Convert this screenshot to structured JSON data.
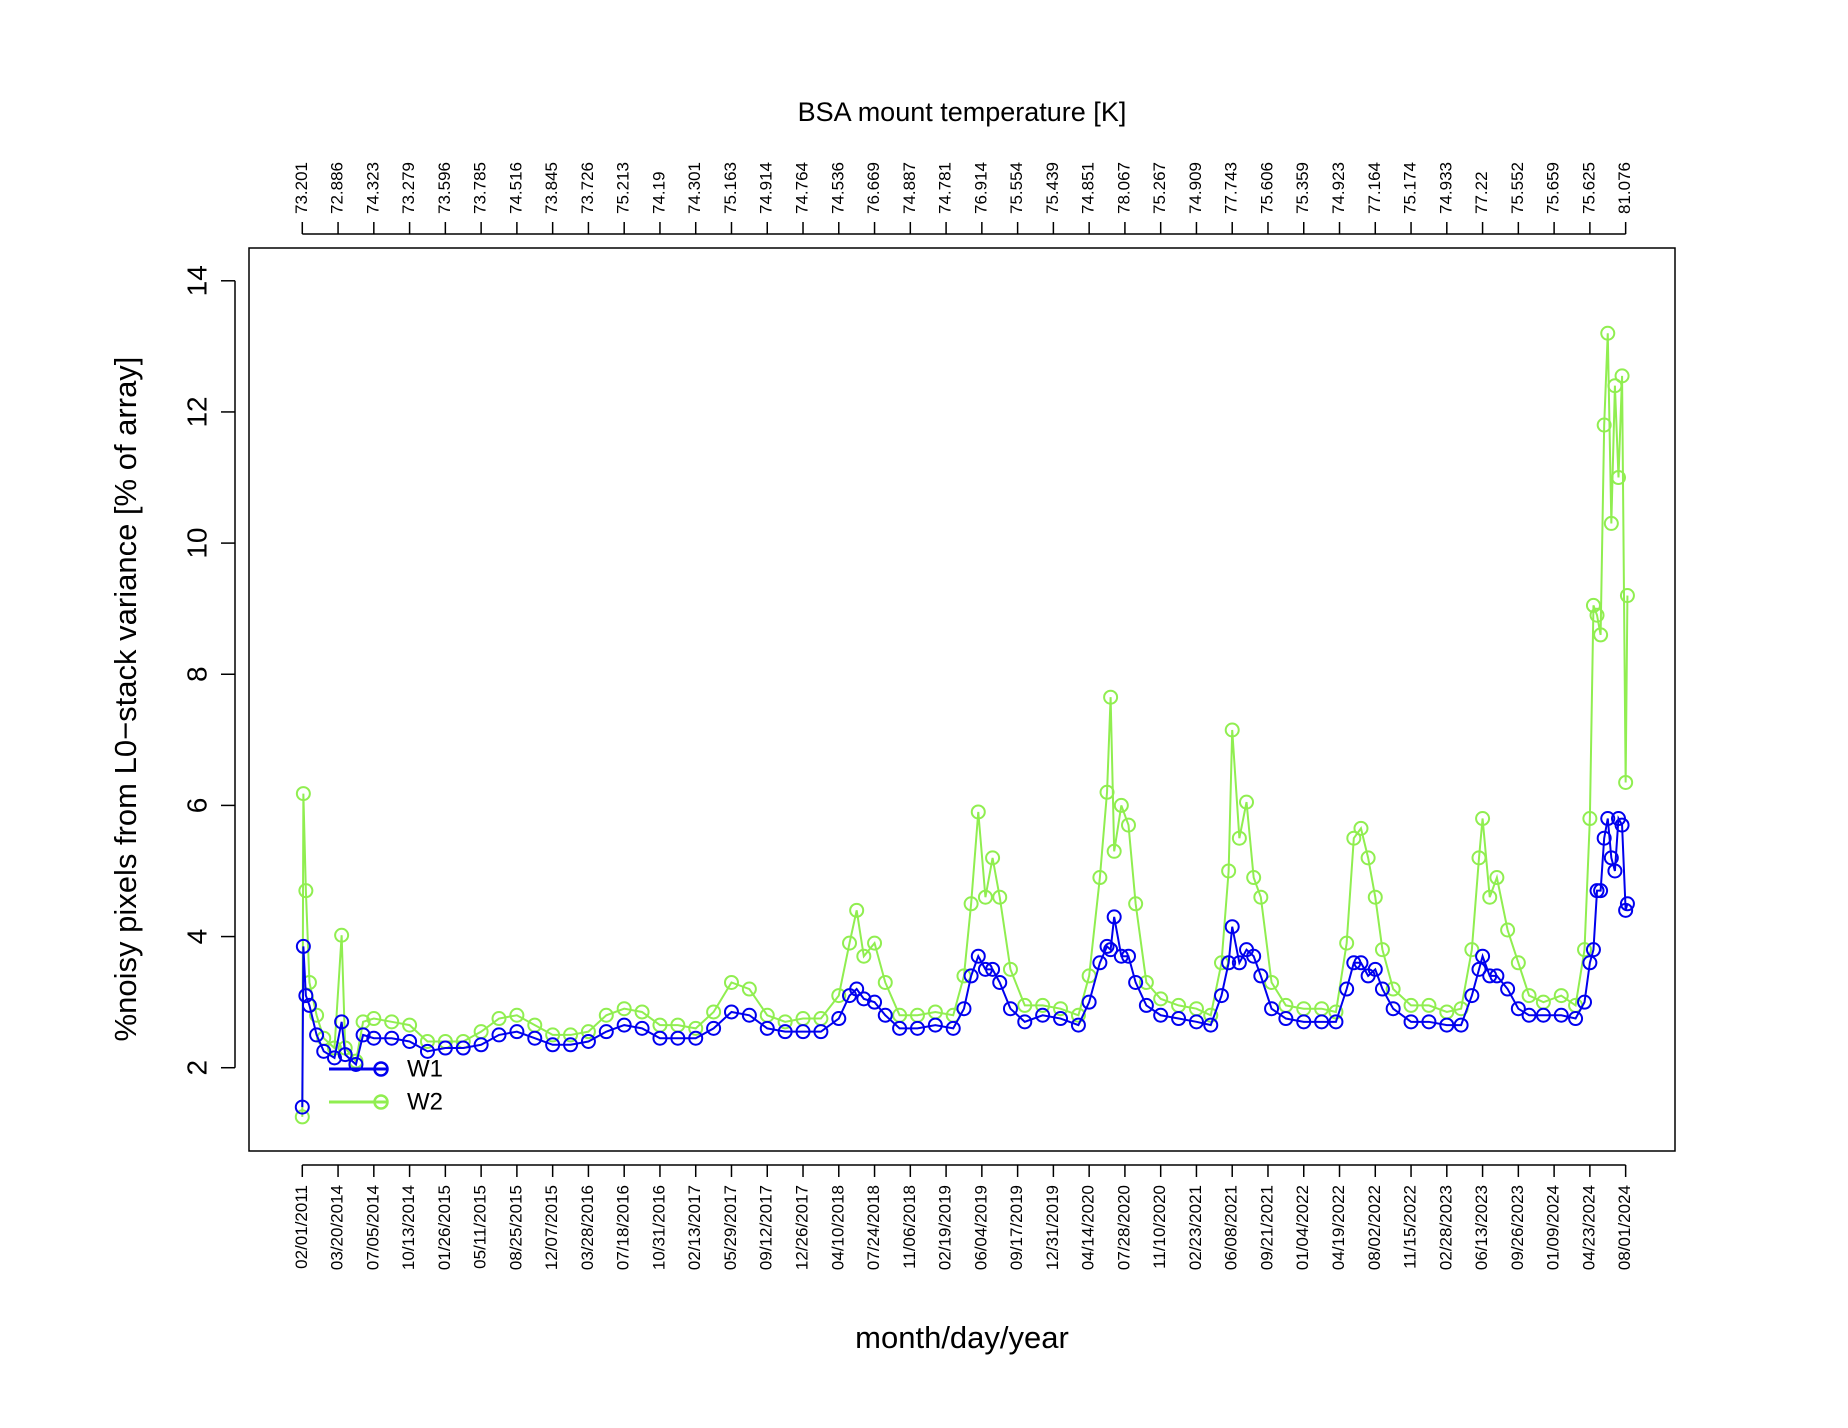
{
  "chart_data": {
    "type": "line",
    "x2label": "BSA mount temperature [K]",
    "xlabel": "month/day/year",
    "ylabel": "%noisy pixels from L0−stack variance [% of array]",
    "legend": "bottomleft",
    "markers": "open-circle",
    "x": [
      0,
      0.03,
      0.1,
      0.2,
      0.4,
      0.6,
      0.9,
      1.1,
      1.2,
      1.5,
      1.7,
      2,
      2.5,
      3,
      3.5,
      4,
      4.5,
      5,
      5.5,
      6,
      6.5,
      7,
      7.5,
      8,
      8.5,
      9,
      9.5,
      10,
      10.5,
      11,
      11.5,
      12,
      12.5,
      13,
      13.5,
      14,
      14.5,
      15,
      15.3,
      15.5,
      15.7,
      16,
      16.3,
      16.7,
      17.2,
      17.7,
      18.2,
      18.5,
      18.7,
      18.9,
      19.1,
      19.3,
      19.5,
      19.8,
      20.2,
      20.7,
      21.2,
      21.7,
      22,
      22.3,
      22.5,
      22.6,
      22.7,
      22.9,
      23.1,
      23.3,
      23.6,
      24,
      24.5,
      25,
      25.4,
      25.7,
      25.9,
      26,
      26.2,
      26.4,
      26.6,
      26.8,
      27.1,
      27.5,
      28,
      28.5,
      28.9,
      29.2,
      29.4,
      29.6,
      29.8,
      30,
      30.2,
      30.5,
      31,
      31.5,
      32,
      32.4,
      32.7,
      32.9,
      33,
      33.2,
      33.4,
      33.7,
      34,
      34.3,
      34.7,
      35.2,
      35.6,
      35.85,
      36,
      36.1,
      36.2,
      36.3,
      36.4,
      36.5,
      36.6,
      36.7,
      36.8,
      36.9,
      37,
      37.05
    ],
    "series": [
      {
        "name": "W1",
        "color": "#0000ee",
        "values": [
          1.4,
          3.85,
          3.1,
          2.95,
          2.5,
          2.25,
          2.15,
          2.7,
          2.2,
          2.05,
          2.5,
          2.45,
          2.45,
          2.4,
          2.25,
          2.3,
          2.3,
          2.35,
          2.5,
          2.55,
          2.45,
          2.35,
          2.35,
          2.4,
          2.55,
          2.65,
          2.6,
          2.45,
          2.45,
          2.45,
          2.6,
          2.85,
          2.8,
          2.6,
          2.55,
          2.55,
          2.55,
          2.75,
          3.1,
          3.2,
          3.05,
          3.0,
          2.8,
          2.6,
          2.6,
          2.65,
          2.6,
          2.9,
          3.4,
          3.7,
          3.5,
          3.5,
          3.3,
          2.9,
          2.7,
          2.8,
          2.75,
          2.65,
          3.0,
          3.6,
          3.85,
          3.8,
          4.3,
          3.7,
          3.7,
          3.3,
          2.95,
          2.8,
          2.75,
          2.7,
          2.65,
          3.1,
          3.6,
          4.15,
          3.6,
          3.8,
          3.7,
          3.4,
          2.9,
          2.75,
          2.7,
          2.7,
          2.7,
          3.2,
          3.6,
          3.6,
          3.4,
          3.5,
          3.2,
          2.9,
          2.7,
          2.7,
          2.65,
          2.65,
          3.1,
          3.5,
          3.7,
          3.4,
          3.4,
          3.2,
          2.9,
          2.8,
          2.8,
          2.8,
          2.75,
          3.0,
          3.6,
          3.8,
          4.7,
          4.7,
          5.5,
          5.8,
          5.2,
          5.0,
          5.8,
          5.7,
          4.4,
          4.5
        ]
      },
      {
        "name": "W2",
        "color": "#90ee50",
        "values": [
          1.25,
          6.18,
          4.7,
          3.3,
          2.8,
          2.45,
          2.3,
          4.02,
          2.3,
          2.1,
          2.7,
          2.75,
          2.7,
          2.65,
          2.4,
          2.4,
          2.4,
          2.55,
          2.75,
          2.8,
          2.65,
          2.5,
          2.5,
          2.55,
          2.8,
          2.9,
          2.85,
          2.65,
          2.65,
          2.6,
          2.85,
          3.3,
          3.2,
          2.8,
          2.7,
          2.75,
          2.75,
          3.1,
          3.9,
          4.4,
          3.7,
          3.9,
          3.3,
          2.8,
          2.8,
          2.85,
          2.8,
          3.4,
          4.5,
          5.9,
          4.6,
          5.2,
          4.6,
          3.5,
          2.95,
          2.95,
          2.9,
          2.8,
          3.4,
          4.9,
          6.2,
          7.65,
          5.3,
          6.0,
          5.7,
          4.5,
          3.3,
          3.05,
          2.95,
          2.9,
          2.8,
          3.6,
          5.0,
          7.15,
          5.5,
          6.05,
          4.9,
          4.6,
          3.3,
          2.95,
          2.9,
          2.9,
          2.85,
          3.9,
          5.5,
          5.65,
          5.2,
          4.6,
          3.8,
          3.2,
          2.95,
          2.95,
          2.85,
          2.9,
          3.8,
          5.2,
          5.8,
          4.6,
          4.9,
          4.1,
          3.6,
          3.1,
          3.0,
          3.1,
          2.95,
          3.8,
          5.8,
          9.05,
          8.9,
          8.6,
          11.8,
          13.2,
          10.3,
          12.4,
          11.0,
          12.55,
          6.35,
          9.2
        ]
      }
    ],
    "xlim": [
      -1.49,
      38.38
    ],
    "ylim": [
      0.73,
      14.5
    ],
    "yticks": [
      2,
      4,
      6,
      8,
      10,
      12,
      14
    ],
    "xticks": [
      {
        "value": 0,
        "label": "02/01/2011"
      },
      {
        "value": 1,
        "label": "03/20/2014"
      },
      {
        "value": 2,
        "label": "07/05/2014"
      },
      {
        "value": 3,
        "label": "10/13/2014"
      },
      {
        "value": 4,
        "label": "01/26/2015"
      },
      {
        "value": 5,
        "label": "05/11/2015"
      },
      {
        "value": 6,
        "label": "08/25/2015"
      },
      {
        "value": 7,
        "label": "12/07/2015"
      },
      {
        "value": 8,
        "label": "03/28/2016"
      },
      {
        "value": 9,
        "label": "07/18/2016"
      },
      {
        "value": 10,
        "label": "10/31/2016"
      },
      {
        "value": 11,
        "label": "02/13/2017"
      },
      {
        "value": 12,
        "label": "05/29/2017"
      },
      {
        "value": 13,
        "label": "09/12/2017"
      },
      {
        "value": 14,
        "label": "12/26/2017"
      },
      {
        "value": 15,
        "label": "04/10/2018"
      },
      {
        "value": 16,
        "label": "07/24/2018"
      },
      {
        "value": 17,
        "label": "11/06/2018"
      },
      {
        "value": 18,
        "label": "02/19/2019"
      },
      {
        "value": 19,
        "label": "06/04/2019"
      },
      {
        "value": 20,
        "label": "09/17/2019"
      },
      {
        "value": 21,
        "label": "12/31/2019"
      },
      {
        "value": 22,
        "label": "04/14/2020"
      },
      {
        "value": 23,
        "label": "07/28/2020"
      },
      {
        "value": 24,
        "label": "11/10/2020"
      },
      {
        "value": 25,
        "label": "02/23/2021"
      },
      {
        "value": 26,
        "label": "06/08/2021"
      },
      {
        "value": 27,
        "label": "09/21/2021"
      },
      {
        "value": 28,
        "label": "01/04/2022"
      },
      {
        "value": 29,
        "label": "04/19/2022"
      },
      {
        "value": 30,
        "label": "08/02/2022"
      },
      {
        "value": 31,
        "label": "11/15/2022"
      },
      {
        "value": 32,
        "label": "02/28/2023"
      },
      {
        "value": 33,
        "label": "06/13/2023"
      },
      {
        "value": 34,
        "label": "09/26/2023"
      },
      {
        "value": 35,
        "label": "01/09/2024"
      },
      {
        "value": 36,
        "label": "04/23/2024"
      },
      {
        "value": 37,
        "label": "08/01/2024"
      }
    ],
    "x2ticks": [
      {
        "value": 0,
        "label": "73.201"
      },
      {
        "value": 1,
        "label": "72.886"
      },
      {
        "value": 2,
        "label": "74.323"
      },
      {
        "value": 3,
        "label": "73.279"
      },
      {
        "value": 4,
        "label": "73.596"
      },
      {
        "value": 5,
        "label": "73.785"
      },
      {
        "value": 6,
        "label": "74.516"
      },
      {
        "value": 7,
        "label": "73.845"
      },
      {
        "value": 8,
        "label": "73.726"
      },
      {
        "value": 9,
        "label": "75.213"
      },
      {
        "value": 10,
        "label": "74.19"
      },
      {
        "value": 11,
        "label": "74.301"
      },
      {
        "value": 12,
        "label": "75.163"
      },
      {
        "value": 13,
        "label": "74.914"
      },
      {
        "value": 14,
        "label": "74.764"
      },
      {
        "value": 15,
        "label": "74.536"
      },
      {
        "value": 16,
        "label": "76.669"
      },
      {
        "value": 17,
        "label": "74.887"
      },
      {
        "value": 18,
        "label": "74.781"
      },
      {
        "value": 19,
        "label": "76.914"
      },
      {
        "value": 20,
        "label": "75.554"
      },
      {
        "value": 21,
        "label": "75.439"
      },
      {
        "value": 22,
        "label": "74.851"
      },
      {
        "value": 23,
        "label": "78.067"
      },
      {
        "value": 24,
        "label": "75.267"
      },
      {
        "value": 25,
        "label": "74.909"
      },
      {
        "value": 26,
        "label": "77.743"
      },
      {
        "value": 27,
        "label": "75.606"
      },
      {
        "value": 28,
        "label": "75.359"
      },
      {
        "value": 29,
        "label": "74.923"
      },
      {
        "value": 30,
        "label": "77.164"
      },
      {
        "value": 31,
        "label": "75.174"
      },
      {
        "value": 32,
        "label": "74.933"
      },
      {
        "value": 33,
        "label": "77.22"
      },
      {
        "value": 34,
        "label": "75.552"
      },
      {
        "value": 35,
        "label": "75.659"
      },
      {
        "value": 36,
        "label": "75.625"
      },
      {
        "value": 37,
        "label": "81.076"
      }
    ]
  }
}
